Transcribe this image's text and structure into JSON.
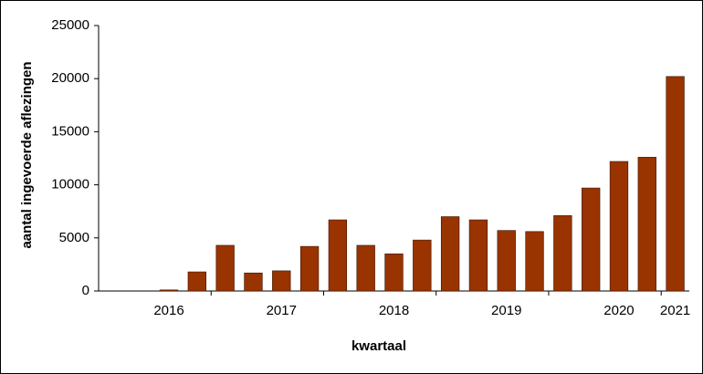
{
  "chart_data": {
    "type": "bar",
    "x_label": "kwartaal",
    "y_label": "aantal ingevoerde aflezingen",
    "categories": [
      null,
      null,
      "2016",
      null,
      null,
      null,
      "2017",
      null,
      null,
      null,
      "2018",
      null,
      null,
      null,
      "2019",
      null,
      null,
      null,
      "2020",
      null,
      "2021"
    ],
    "values": [
      0,
      0,
      100,
      1800,
      4300,
      1700,
      1900,
      4200,
      6700,
      4300,
      3500,
      4800,
      7000,
      6700,
      5700,
      5600,
      7100,
      9700,
      12200,
      12600,
      20200
    ],
    "color": "#993300",
    "ylim": [
      0,
      25000
    ],
    "yticks": [
      0,
      5000,
      10000,
      15000,
      20000,
      25000
    ],
    "grid": false
  }
}
